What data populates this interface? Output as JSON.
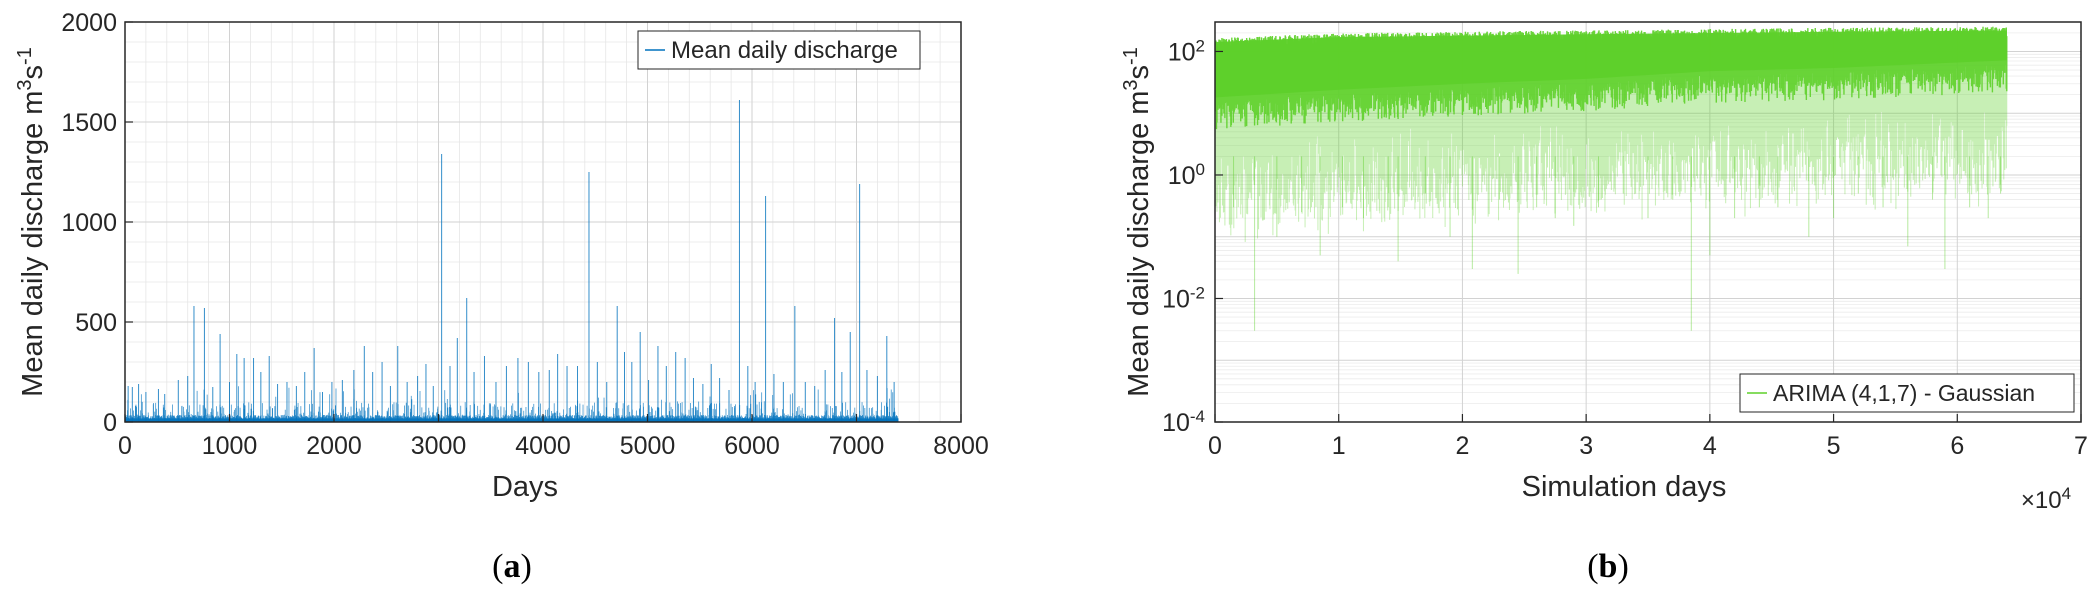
{
  "chart_data": [
    {
      "type": "line",
      "panel": "a",
      "caption_label": "a",
      "xlabel": "Days",
      "ylabel": "Mean daily discharge m³s⁻¹",
      "ylabel_parts": {
        "main": "Mean daily discharge m",
        "sup1": "3",
        "mid": "s",
        "sup2": "-1"
      },
      "xlim": [
        0,
        8000
      ],
      "ylim": [
        0,
        2000
      ],
      "xticks": [
        0,
        1000,
        2000,
        3000,
        4000,
        5000,
        6000,
        7000,
        8000
      ],
      "xtick_labels": [
        "0",
        "1000",
        "2000",
        "3000",
        "4000",
        "5000",
        "6000",
        "7000",
        "8000"
      ],
      "yticks": [
        0,
        500,
        1000,
        1500,
        2000
      ],
      "ytick_labels": [
        "0",
        "500",
        "1000",
        "1500",
        "2000"
      ],
      "grid": true,
      "legend_position": "top-right",
      "series": [
        {
          "name": "Mean daily discharge",
          "color": "#0072BD",
          "n_days": 7400,
          "peaks": [
            [
              30,
              180
            ],
            [
              70,
              175
            ],
            [
              130,
              190
            ],
            [
              200,
              150
            ],
            [
              320,
              165
            ],
            [
              380,
              140
            ],
            [
              510,
              210
            ],
            [
              600,
              230
            ],
            [
              660,
              580
            ],
            [
              760,
              570
            ],
            [
              840,
              175
            ],
            [
              910,
              440
            ],
            [
              1000,
              200
            ],
            [
              1070,
              340
            ],
            [
              1140,
              320
            ],
            [
              1230,
              320
            ],
            [
              1300,
              250
            ],
            [
              1380,
              330
            ],
            [
              1460,
              190
            ],
            [
              1550,
              200
            ],
            [
              1640,
              180
            ],
            [
              1720,
              250
            ],
            [
              1810,
              370
            ],
            [
              1890,
              150
            ],
            [
              1980,
              200
            ],
            [
              2080,
              210
            ],
            [
              2190,
              260
            ],
            [
              2290,
              380
            ],
            [
              2370,
              250
            ],
            [
              2460,
              300
            ],
            [
              2540,
              180
            ],
            [
              2610,
              380
            ],
            [
              2700,
              200
            ],
            [
              2800,
              230
            ],
            [
              2880,
              290
            ],
            [
              2950,
              180
            ],
            [
              3030,
              1340
            ],
            [
              3110,
              280
            ],
            [
              3180,
              420
            ],
            [
              3270,
              620
            ],
            [
              3340,
              250
            ],
            [
              3440,
              330
            ],
            [
              3550,
              200
            ],
            [
              3650,
              280
            ],
            [
              3760,
              320
            ],
            [
              3860,
              300
            ],
            [
              3960,
              250
            ],
            [
              4060,
              260
            ],
            [
              4140,
              340
            ],
            [
              4230,
              280
            ],
            [
              4330,
              280
            ],
            [
              4440,
              1250
            ],
            [
              4520,
              300
            ],
            [
              4610,
              200
            ],
            [
              4710,
              580
            ],
            [
              4780,
              350
            ],
            [
              4850,
              300
            ],
            [
              4930,
              450
            ],
            [
              5010,
              210
            ],
            [
              5100,
              380
            ],
            [
              5180,
              280
            ],
            [
              5270,
              350
            ],
            [
              5360,
              320
            ],
            [
              5440,
              220
            ],
            [
              5530,
              190
            ],
            [
              5610,
              290
            ],
            [
              5690,
              220
            ],
            [
              5780,
              160
            ],
            [
              5880,
              1610
            ],
            [
              5960,
              280
            ],
            [
              6030,
              200
            ],
            [
              6130,
              1130
            ],
            [
              6210,
              240
            ],
            [
              6300,
              200
            ],
            [
              6410,
              580
            ],
            [
              6510,
              200
            ],
            [
              6600,
              180
            ],
            [
              6700,
              260
            ],
            [
              6790,
              520
            ],
            [
              6860,
              250
            ],
            [
              6940,
              450
            ],
            [
              7030,
              1190
            ],
            [
              7100,
              260
            ],
            [
              7200,
              230
            ],
            [
              7290,
              430
            ],
            [
              7360,
              200
            ]
          ]
        }
      ]
    },
    {
      "type": "area",
      "panel": "b",
      "caption_label": "b",
      "xlabel": "Simulation days",
      "x_multiplier_label": "×10",
      "x_multiplier_exp": "4",
      "ylabel": "Mean daily discharge m³s⁻¹",
      "ylabel_parts": {
        "main": "Mean daily discharge m",
        "sup1": "3",
        "mid": "s",
        "sup2": "-1"
      },
      "xlim": [
        0,
        70000
      ],
      "ylim": [
        0.0001,
        300
      ],
      "yscale": "log",
      "xticks": [
        0,
        10000,
        20000,
        30000,
        40000,
        50000,
        60000,
        70000
      ],
      "xtick_labels": [
        "0",
        "1",
        "2",
        "3",
        "4",
        "5",
        "6",
        "7"
      ],
      "yticks": [
        0.0001,
        0.01,
        1,
        100
      ],
      "ytick_labels": [
        {
          "base": "10",
          "exp": "-4"
        },
        {
          "base": "10",
          "exp": "-2"
        },
        {
          "base": "10",
          "exp": "0"
        },
        {
          "base": "10",
          "exp": "2"
        }
      ],
      "grid": true,
      "legend_position": "bottom-right",
      "series": [
        {
          "name": "ARIMA (4,1,7) - Gaussian",
          "color": "#5ED02A",
          "x_max": 64000,
          "band_upper": [
            [
              0,
              150
            ],
            [
              10000,
              180
            ],
            [
              20000,
              190
            ],
            [
              30000,
              200
            ],
            [
              40000,
              210
            ],
            [
              50000,
              220
            ],
            [
              64000,
              230
            ]
          ],
          "band_dense_low": [
            [
              0,
              3
            ],
            [
              10000,
              4
            ],
            [
              20000,
              5
            ],
            [
              30000,
              6
            ],
            [
              40000,
              8
            ],
            [
              50000,
              9
            ],
            [
              64000,
              12
            ]
          ],
          "dips": [
            [
              3200,
              0.003
            ],
            [
              1500,
              0.3
            ],
            [
              5000,
              0.1
            ],
            [
              7000,
              0.25
            ],
            [
              8500,
              0.05
            ],
            [
              10300,
              0.3
            ],
            [
              12000,
              0.2
            ],
            [
              14000,
              0.3
            ],
            [
              14800,
              0.04
            ],
            [
              17000,
              0.5
            ],
            [
              19000,
              0.1
            ],
            [
              20800,
              0.03
            ],
            [
              23000,
              0.4
            ],
            [
              24500,
              0.025
            ],
            [
              26000,
              0.3
            ],
            [
              27500,
              0.2
            ],
            [
              29000,
              0.15
            ],
            [
              31000,
              0.3
            ],
            [
              33000,
              0.5
            ],
            [
              35000,
              0.2
            ],
            [
              37000,
              0.4
            ],
            [
              38500,
              0.003
            ],
            [
              40000,
              0.05
            ],
            [
              42000,
              0.2
            ],
            [
              44000,
              0.3
            ],
            [
              45500,
              0.3
            ],
            [
              48000,
              0.1
            ],
            [
              50000,
              0.2
            ],
            [
              52000,
              0.5
            ],
            [
              54000,
              0.3
            ],
            [
              56000,
              0.07
            ],
            [
              58000,
              0.4
            ],
            [
              59000,
              0.03
            ],
            [
              61000,
              0.3
            ],
            [
              62500,
              0.2
            ],
            [
              63500,
              0.5
            ]
          ]
        }
      ]
    }
  ]
}
